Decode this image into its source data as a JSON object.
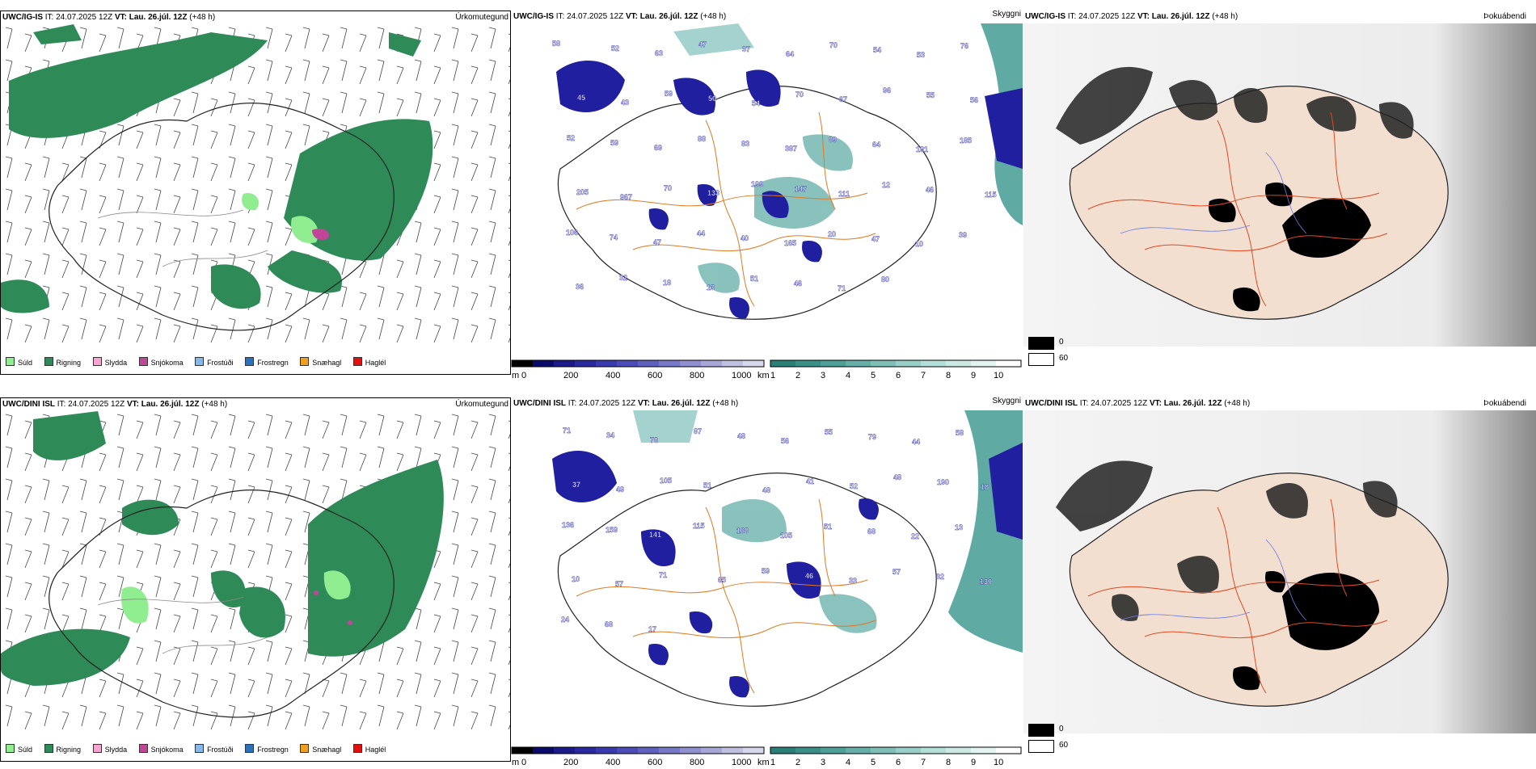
{
  "rows": [
    {
      "precip": {
        "model": "UWC/IG-IS",
        "it": "IT: 24.07.2025 12Z",
        "vt": "VT: Lau. 26.júl. 12Z",
        "lead": "(+48 h)",
        "product": "Úrkomutegund"
      },
      "vis": {
        "model": "UWC/IG-IS",
        "it": "IT: 24.07.2025 12Z",
        "vt": "VT: Lau. 26.júl. 12Z",
        "lead": "(+48 h)",
        "product": "Skyggni"
      },
      "fog": {
        "model": "UWC/IG-IS",
        "it": "IT: 24.07.2025 12Z",
        "vt": "VT: Lau. 26.júl. 12Z",
        "lead": "(+48 h)",
        "product": "Þokuábendi"
      }
    },
    {
      "precip": {
        "model": "UWC/DINI ISL",
        "it": "IT: 24.07.2025 12Z",
        "vt": "VT: Lau. 26.júl. 12Z",
        "lead": "(+48 h)",
        "product": "Úrkomutegund"
      },
      "vis": {
        "model": "UWC/DINI ISL",
        "it": "IT: 24.07.2025 12Z",
        "vt": "VT: Lau. 26.júl. 12Z",
        "lead": "(+48 h)",
        "product": "Skyggni"
      },
      "fog": {
        "model": "UWC/DINI ISL",
        "it": "IT: 24.07.2025 12Z",
        "vt": "VT: Lau. 26.júl. 12Z",
        "lead": "(+48 h)",
        "product": "Þokuábendi"
      }
    }
  ],
  "precip_legend": [
    {
      "label": "Súld",
      "color": "#90ee90"
    },
    {
      "label": "Rigning",
      "color": "#2e8b57"
    },
    {
      "label": "Slydda",
      "color": "#f4a6d0"
    },
    {
      "label": "Snjókoma",
      "color": "#c2459a"
    },
    {
      "label": "Frostúði",
      "color": "#87b9e8"
    },
    {
      "label": "Frostregn",
      "color": "#2f6fb5"
    },
    {
      "label": "Snæhagl",
      "color": "#f0a020"
    },
    {
      "label": "Haglél",
      "color": "#e01010"
    }
  ],
  "ceiling_bar": {
    "unit": "m",
    "ticks": [
      "0",
      "200",
      "400",
      "600",
      "800",
      "1000"
    ]
  },
  "visibility_bar": {
    "unit": "km",
    "ticks": [
      "1",
      "2",
      "3",
      "4",
      "5",
      "6",
      "7",
      "8",
      "9",
      "10"
    ]
  },
  "fog_legend": [
    {
      "label": "0",
      "color": "#000000"
    },
    {
      "label": "60",
      "color": "#ffffff"
    }
  ],
  "vis_numbers_top": [
    "58",
    "52",
    "63",
    "47",
    "37",
    "64",
    "70",
    "54",
    "53",
    "76",
    "45",
    "43",
    "59",
    "50",
    "54",
    "70",
    "67",
    "96",
    "55",
    "56",
    "52",
    "59",
    "69",
    "88",
    "83",
    "387",
    "89",
    "64",
    "181",
    "185",
    "205",
    "967",
    "70",
    "133",
    "199",
    "147",
    "111",
    "12",
    "46",
    "115",
    "106",
    "74",
    "47",
    "44",
    "40",
    "165",
    "20",
    "47",
    "10",
    "39",
    "36",
    "32",
    "18",
    "13",
    "51",
    "46",
    "71",
    "80"
  ],
  "vis_numbers_bottom": [
    "71",
    "34",
    "78",
    "87",
    "48",
    "56",
    "55",
    "79",
    "44",
    "58",
    "37",
    "49",
    "105",
    "51",
    "48",
    "41",
    "52",
    "48",
    "190",
    "18",
    "136",
    "159",
    "141",
    "115",
    "168",
    "105",
    "51",
    "68",
    "22",
    "13",
    "10",
    "57",
    "71",
    "65",
    "59",
    "46",
    "33",
    "57",
    "32",
    "130",
    "24",
    "68",
    "17"
  ]
}
